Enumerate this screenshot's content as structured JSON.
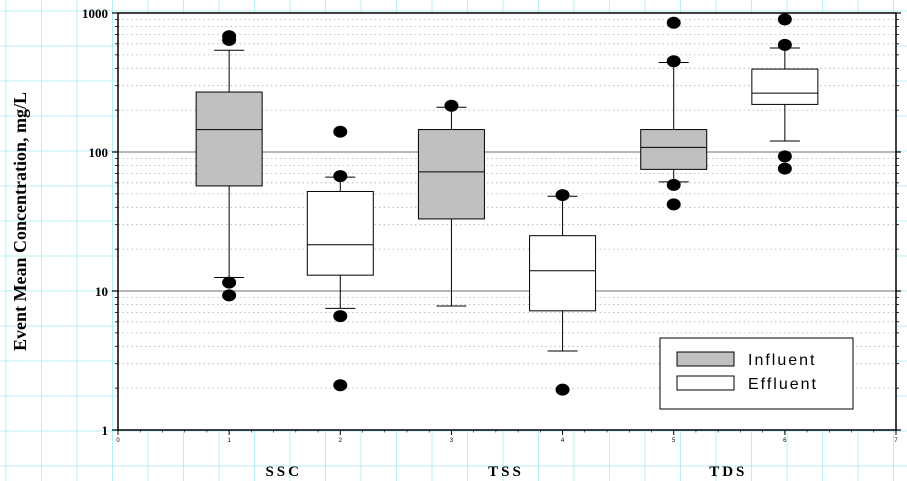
{
  "chart_data": {
    "type": "box",
    "ylabel": "Event Mean Concentration, mg/L",
    "yscale": "log",
    "ylim": [
      1,
      1000
    ],
    "y_ticks": [
      "1",
      "10",
      "100",
      "1000"
    ],
    "x_ticks": [
      "0",
      "1",
      "2",
      "3",
      "4",
      "5",
      "6",
      "7"
    ],
    "xlim": [
      0,
      7
    ],
    "groups": [
      {
        "label": "SSC",
        "center": 1.5
      },
      {
        "label": "TSS",
        "center": 3.5
      },
      {
        "label": "TDS",
        "center": 5.5
      }
    ],
    "legend": {
      "position": "bottom-right",
      "items": [
        {
          "label": "Influent",
          "color": "#c0c0c0"
        },
        {
          "label": "Effluent",
          "color": "#ffffff"
        }
      ]
    },
    "series": [
      {
        "x": 1,
        "type": "Influent",
        "whisker_low": 12.5,
        "q1": 57,
        "median": 145,
        "q3": 270,
        "whisker_high": 540,
        "outliers": [
          9.3,
          11.5,
          640,
          680
        ]
      },
      {
        "x": 2,
        "type": "Effluent",
        "whisker_low": 7.5,
        "q1": 13,
        "median": 21.5,
        "q3": 52,
        "whisker_high": 66,
        "outliers": [
          2.1,
          6.6,
          67,
          140
        ]
      },
      {
        "x": 3,
        "type": "Influent",
        "whisker_low": 7.8,
        "q1": 33,
        "median": 72,
        "q3": 145,
        "whisker_high": 210,
        "outliers": [
          215
        ]
      },
      {
        "x": 4,
        "type": "Effluent",
        "whisker_low": 3.7,
        "q1": 7.2,
        "median": 14,
        "q3": 25,
        "whisker_high": 48,
        "outliers": [
          1.95,
          49
        ]
      },
      {
        "x": 5,
        "type": "Influent",
        "whisker_low": 61,
        "q1": 75,
        "median": 108,
        "q3": 145,
        "whisker_high": 440,
        "outliers": [
          42,
          58,
          450,
          850
        ]
      },
      {
        "x": 6,
        "type": "Effluent",
        "whisker_low": 120,
        "q1": 220,
        "median": 265,
        "q3": 395,
        "whisker_high": 560,
        "outliers": [
          76,
          93,
          590,
          900
        ]
      }
    ],
    "colors": {
      "influent": "#c0c0c0",
      "effluent": "#ffffff",
      "grid_major": "#8a8a8a",
      "grid_minor": "#b0b0b0",
      "graph_paper": "#b8eef5"
    }
  }
}
